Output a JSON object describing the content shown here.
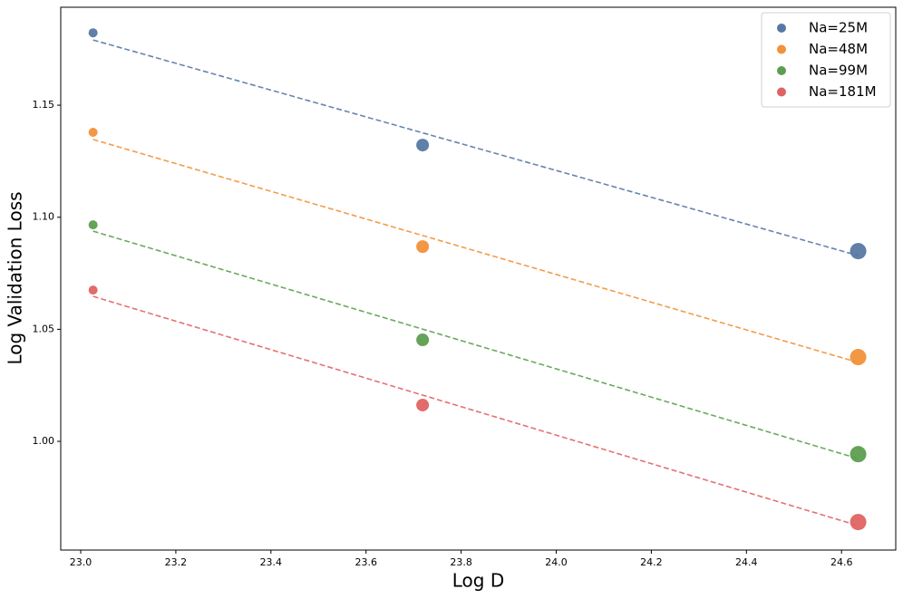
{
  "chart_data": {
    "type": "scatter",
    "xlabel": "Log D",
    "ylabel": "Log Validation Loss",
    "x": [
      23.026,
      23.719,
      24.635
    ],
    "series": [
      {
        "name": "Na=25M",
        "color": "#5778a4",
        "values": [
          1.1823,
          1.1322,
          1.0849
        ],
        "sizes": [
          5,
          7,
          9
        ],
        "fit": {
          "x": [
            23.026,
            24.635
          ],
          "values": [
            1.1791,
            1.0829
          ]
        }
      },
      {
        "name": "Na=48M",
        "color": "#f1913a",
        "values": [
          1.1379,
          1.0869,
          1.0376
        ],
        "sizes": [
          5,
          7,
          9
        ],
        "fit": {
          "x": [
            23.026,
            24.635
          ],
          "values": [
            1.1347,
            1.0352
          ]
        }
      },
      {
        "name": "Na=99M",
        "color": "#5c9e4f",
        "values": [
          1.0966,
          1.0453,
          0.9943
        ],
        "sizes": [
          5,
          7,
          9
        ],
        "fit": {
          "x": [
            23.026,
            24.635
          ],
          "values": [
            1.0938,
            0.9923
          ]
        }
      },
      {
        "name": "Na=181M",
        "color": "#e06363",
        "values": [
          1.0675,
          1.0162,
          0.964
        ],
        "sizes": [
          5,
          7,
          9
        ],
        "fit": {
          "x": [
            23.026,
            24.635
          ],
          "values": [
            1.0647,
            0.9624
          ]
        }
      }
    ],
    "xlim": [
      22.958,
      24.714
    ],
    "xticks": [
      {
        "value": 23,
        "label": "23.0"
      },
      23.2,
      23.4,
      23.6,
      23.8,
      {
        "value": 24,
        "label": "24.0"
      },
      24.2,
      24.4,
      24.6
    ],
    "ylim": [
      0.9515,
      1.1937
    ],
    "yticks": [
      {
        "value": 1,
        "label": "1.00"
      },
      1.05,
      {
        "value": 1.1,
        "label": "1.10"
      },
      1.15
    ],
    "legend": "upper right"
  }
}
